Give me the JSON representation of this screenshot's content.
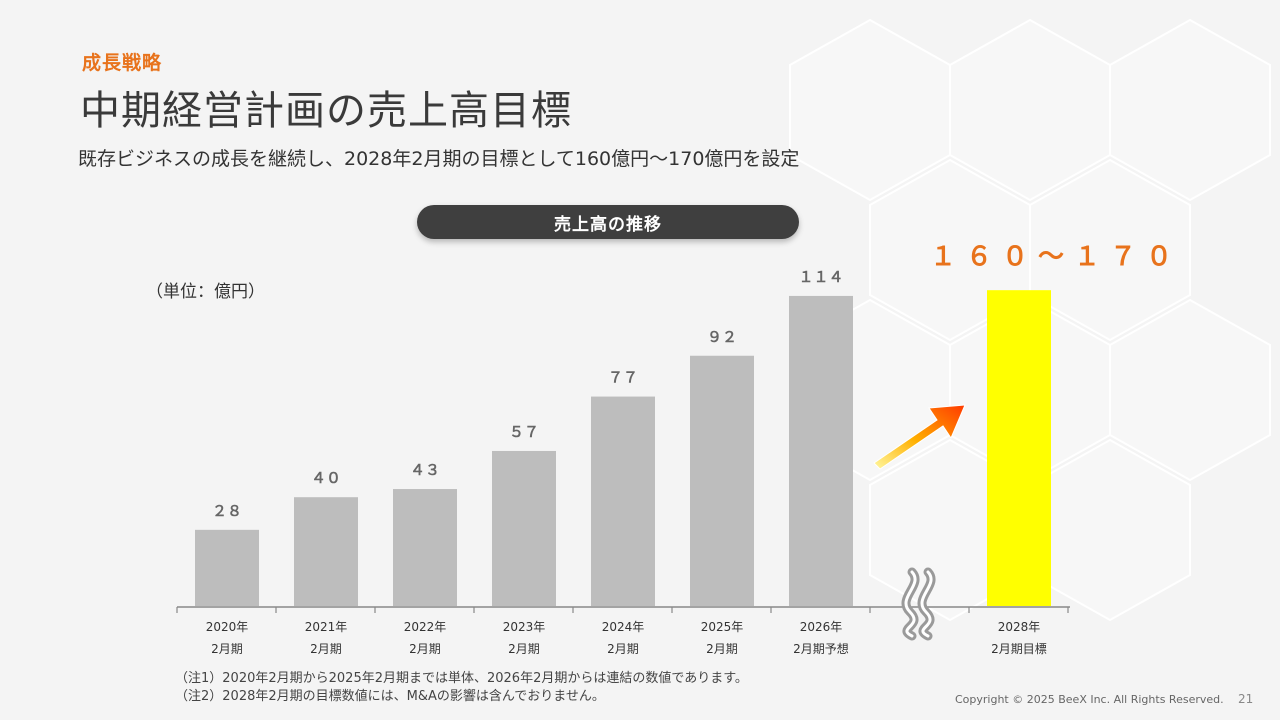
{
  "header": {
    "section_label": "成長戦略",
    "title": "中期経営計画の売上高目標",
    "subtitle": "既存ビジネスの成長を継続し、2028年2月期の目標として160億円〜170億円を設定"
  },
  "chart_pill_label": "売上高の推移",
  "chart_data": {
    "type": "bar",
    "unit_label": "（単位：億円）",
    "categories": [
      [
        "2020年",
        "2月期"
      ],
      [
        "2021年",
        "2月期"
      ],
      [
        "2022年",
        "2月期"
      ],
      [
        "2023年",
        "2月期"
      ],
      [
        "2024年",
        "2月期"
      ],
      [
        "2025年",
        "2月期"
      ],
      [
        "2026年",
        "2月期予想"
      ]
    ],
    "values": [
      28,
      40,
      43,
      57,
      77,
      92,
      114
    ],
    "value_labels": [
      "２８",
      "４０",
      "４３",
      "５７",
      "７７",
      "９２",
      "１１４"
    ],
    "target": {
      "category": [
        "2028年",
        "2月期目標"
      ],
      "value_range": [
        160,
        170
      ],
      "label": "１６０〜１７０"
    },
    "ylim": [
      0,
      170
    ],
    "bar_color": "#bdbdbd",
    "target_color": "#ffff00",
    "accent_color": "#e8731c",
    "grid": false,
    "axis_break_icon": "wavy-break-icon",
    "growth_arrow_icon": "growth-arrow-icon"
  },
  "notes": [
    "（注1）2020年2月期から2025年2月期までは単体、2026年2月期からは連結の数値であります。",
    "（注2）2028年2月期の目標数値には、M&Aの影響は含んでおりません。"
  ],
  "footer": {
    "copyright": "Copyright © 2025  BeeX Inc. All Rights Reserved.",
    "page_number": "21"
  }
}
